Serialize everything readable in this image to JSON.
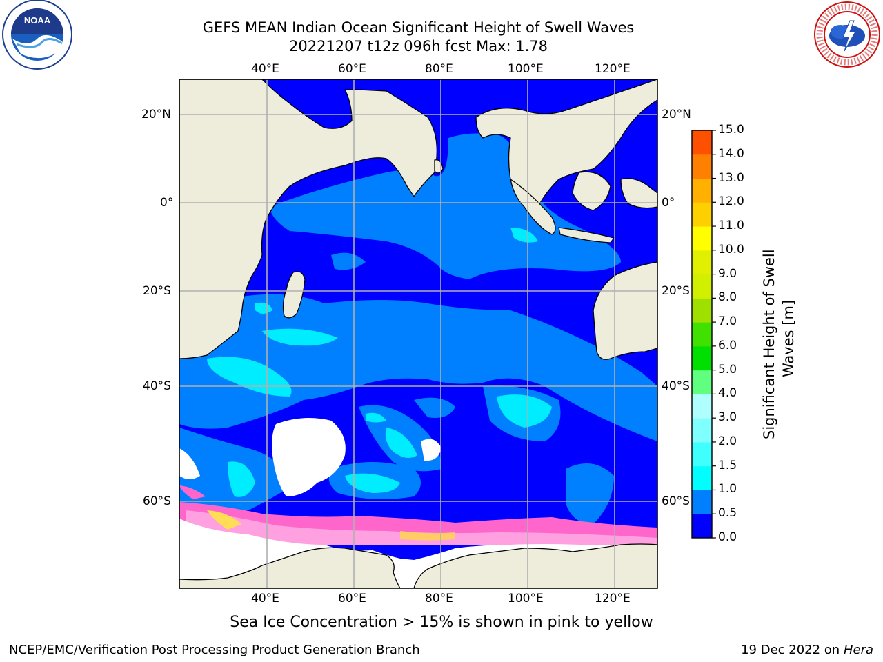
{
  "title_line1": "GEFS MEAN Indian Ocean Significant Height of Swell Waves",
  "title_line2": "20221207 t12z 096h fcst   Max: 1.78",
  "subtitle_note": "Sea Ice Concentration > 15% is shown in pink to yellow",
  "footer_left": "NCEP/EMC/Verification Post Processing Product Generation Branch",
  "footer_right_date": "19 Dec 2022 on",
  "footer_right_machine": "Hera",
  "logos": {
    "left": "NOAA",
    "right": "NATIONAL WEATHER SERVICE"
  },
  "map": {
    "lon_ticks": [
      "40°E",
      "60°E",
      "80°E",
      "100°E",
      "120°E"
    ],
    "lat_ticks": [
      "20°N",
      "0°",
      "20°S",
      "40°S",
      "60°S"
    ],
    "colors": {
      "land": "#eeeddc",
      "ocean_low": "#0000ff",
      "ocean_mid": "#0080ff",
      "ocean_high": "#00ffff",
      "no_data": "#ffffff",
      "grid": "#b0b0b0"
    }
  },
  "colorbar": {
    "label_line1": "Significant Height of Swell",
    "label_line2": "Waves [m]",
    "ticks": [
      "0.0",
      "0.5",
      "1.0",
      "1.5",
      "2.0",
      "3.0",
      "4.0",
      "5.0",
      "6.0",
      "7.0",
      "8.0",
      "9.0",
      "10.0",
      "11.0",
      "12.0",
      "13.0",
      "14.0",
      "15.0"
    ],
    "colors": [
      "#0000ff",
      "#0080ff",
      "#00ffff",
      "#40ffff",
      "#80ffff",
      "#b0ffff",
      "#60ff80",
      "#00e000",
      "#40e000",
      "#a0e000",
      "#d0f000",
      "#e0f000",
      "#ffff00",
      "#ffd000",
      "#ffb000",
      "#ff8000",
      "#ff5000",
      "#ff2000",
      "#ff0000"
    ]
  }
}
